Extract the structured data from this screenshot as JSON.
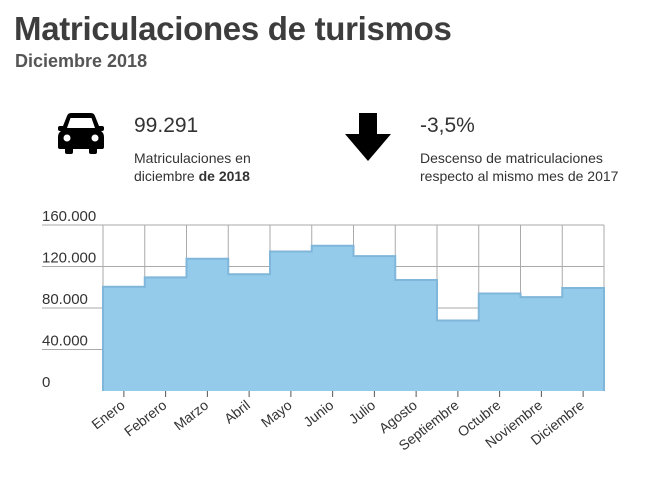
{
  "header": {
    "title": "Matriculaciones de turismos",
    "subtitle": "Diciembre 2018"
  },
  "kpis": {
    "registrations": {
      "icon": "car-icon",
      "value": "99.291",
      "desc_line1": "Matriculaciones en",
      "desc_line2_prefix": "diciembre ",
      "desc_line2_bold": "de 2018"
    },
    "change": {
      "icon": "arrow-down-icon",
      "value": "-3,5%",
      "desc_line1": "Descenso de matriculaciones",
      "desc_line2": "respecto al mismo mes de 2017"
    }
  },
  "chart_data": {
    "type": "bar",
    "categories": [
      "Enero",
      "Febrero",
      "Marzo",
      "Abril",
      "Mayo",
      "Junio",
      "Julio",
      "Agosto",
      "Septiembre",
      "Octubre",
      "Noviembre",
      "Diciembre"
    ],
    "values": [
      100500,
      109500,
      127500,
      112500,
      134500,
      140000,
      130000,
      107000,
      68000,
      94000,
      90500,
      99291
    ],
    "y_ticks": [
      "160.000",
      "120.000",
      "80.000",
      "40.000",
      "0"
    ],
    "ylim": [
      0,
      160000
    ],
    "grid": true,
    "bar_color": "#94cbea",
    "bar_edge_color": "#7fb6d9",
    "grid_color": "#aaaaaa"
  }
}
